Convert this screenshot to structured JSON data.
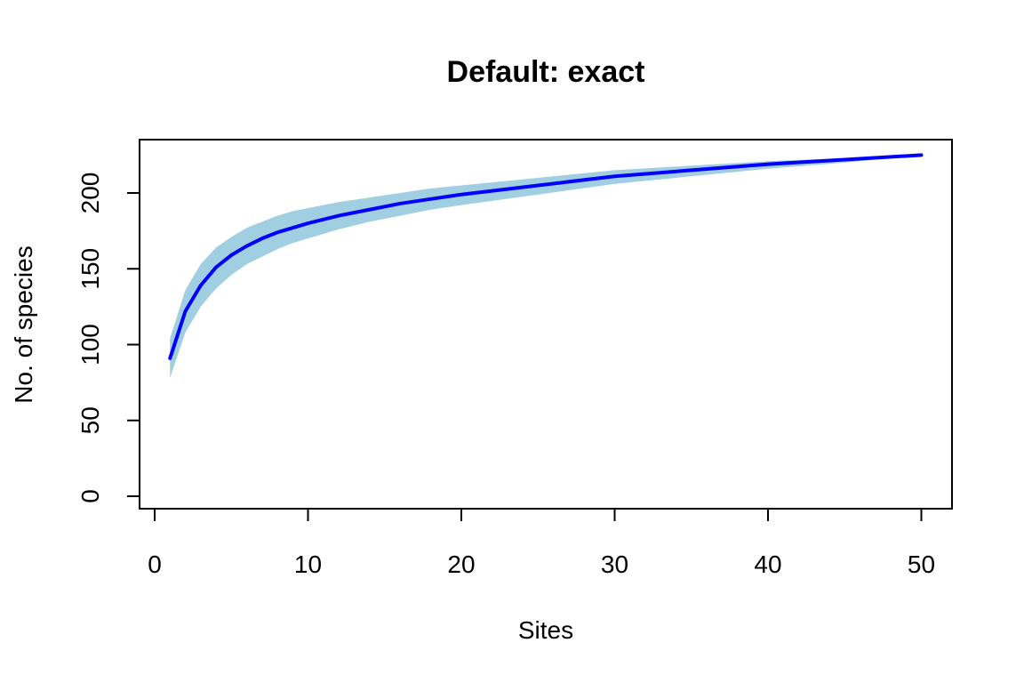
{
  "chart_data": {
    "type": "area",
    "title": "Default: exact",
    "xlabel": "Sites",
    "ylabel": "No. of species",
    "xlim": [
      0,
      52
    ],
    "ylim": [
      0,
      230
    ],
    "x_ticks": [
      0,
      10,
      20,
      30,
      40,
      50
    ],
    "y_ticks": [
      0,
      50,
      100,
      150,
      200
    ],
    "grid": false,
    "colors": {
      "line": "#0000ff",
      "band": "#9fcfe0"
    },
    "series": [
      {
        "x": [
          1,
          2,
          3,
          4,
          5,
          6,
          7,
          8,
          9,
          10,
          12,
          14,
          16,
          18,
          20,
          25,
          30,
          35,
          40,
          45,
          50
        ],
        "values": [
          91,
          122,
          139,
          151,
          159,
          165,
          170,
          174,
          177,
          180,
          185,
          189,
          193,
          196,
          199,
          205,
          211,
          215,
          219,
          222,
          225
        ],
        "lower": [
          78,
          108,
          125,
          137,
          146,
          153,
          158,
          163,
          167,
          170,
          176,
          181,
          185,
          189,
          192,
          199,
          206,
          211,
          216,
          220,
          225
        ],
        "upper": [
          104,
          136,
          153,
          164,
          171,
          177,
          181,
          185,
          188,
          190,
          194,
          197,
          200,
          203,
          205,
          210,
          215,
          218,
          221,
          223,
          225
        ]
      }
    ]
  }
}
